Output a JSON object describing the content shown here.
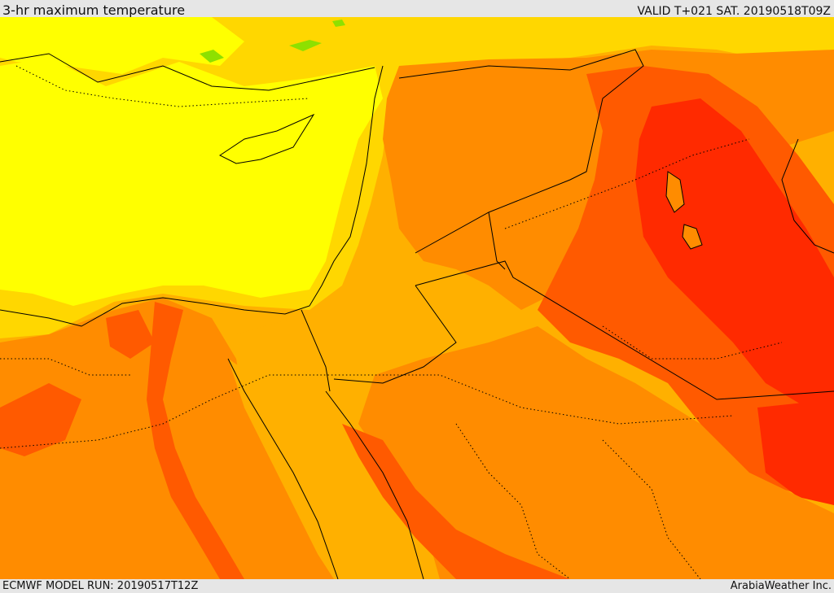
{
  "header": {
    "title": "3-hr maximum temperature",
    "valid": "VALID T+021 SAT. 20190518T09Z"
  },
  "footer": {
    "model_run": "ECMWF MODEL RUN: 20190517T12Z",
    "credit": "ArabiaWeather Inc."
  },
  "map": {
    "field": "3-hr maximum temperature",
    "region": "Eastern Mediterranean, Levant, Egypt, Arabian Peninsula",
    "colors": {
      "coolest": "#ffff00",
      "cool": "#ffd700",
      "mild": "#ffb000",
      "warm": "#ff8c00",
      "hot": "#ff5a00",
      "hottest": "#ff2a00",
      "green": "#8ee000",
      "border": "#000000"
    }
  }
}
